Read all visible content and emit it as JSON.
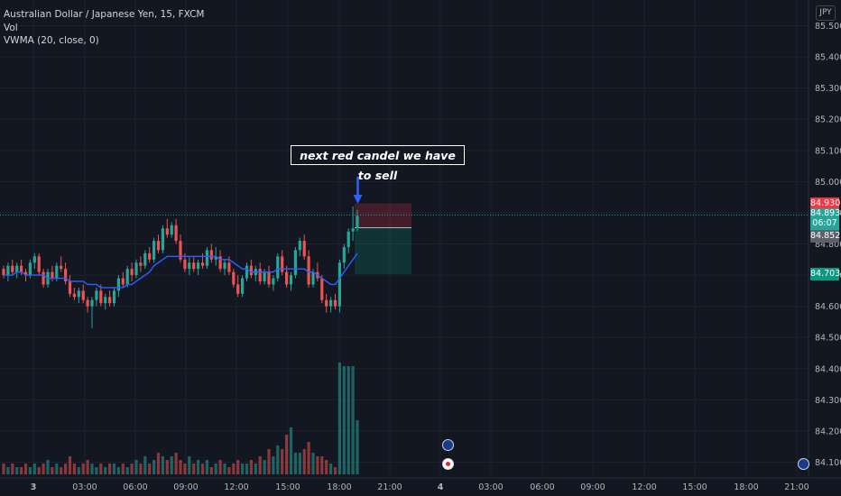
{
  "legend": {
    "symbol": "Australian Dollar / Japanese Yen, 15, FXCM",
    "vol": "Vol",
    "vwma": "VWMA (20, close, 0)"
  },
  "currency_button": "JPY",
  "annotation": {
    "text": "next red candel we have to sell"
  },
  "price_tags": {
    "stop": {
      "text": "84.930",
      "color": "#f23645"
    },
    "last": {
      "text": "84.893",
      "sub": "06:07",
      "color": "#26a69a"
    },
    "entry": {
      "text": "84.852",
      "color": "#5d606b"
    },
    "target": {
      "text": "84.703",
      "color": "#089981"
    }
  },
  "colors": {
    "up": "#26a69a",
    "down": "#ef5350",
    "vwma": "#2962ff",
    "volume_up": "#26a69a",
    "volume_down": "#ef5350",
    "grid": "#1e222d"
  },
  "chart_data": {
    "type": "candlestick",
    "title": "Australian Dollar / Japanese Yen, 15, FXCM",
    "interval_minutes": 15,
    "x_ticks": [
      "3",
      "03:00",
      "06:00",
      "09:00",
      "12:00",
      "15:00",
      "18:00",
      "21:00",
      "4",
      "03:00",
      "06:00",
      "09:00",
      "12:00",
      "15:00",
      "18:00",
      "21:00"
    ],
    "y_ticks": [
      "85.500",
      "85.400",
      "85.300",
      "85.200",
      "85.100",
      "85.000",
      "84.900",
      "84.800",
      "84.700",
      "84.600",
      "84.500",
      "84.400",
      "84.300",
      "84.200",
      "84.100"
    ],
    "ylim": [
      84.09,
      85.53
    ],
    "candles": [
      {
        "o": 84.72,
        "h": 84.73,
        "l": 84.69,
        "c": 84.7
      },
      {
        "o": 84.7,
        "h": 84.74,
        "l": 84.68,
        "c": 84.73
      },
      {
        "o": 84.73,
        "h": 84.75,
        "l": 84.7,
        "c": 84.71
      },
      {
        "o": 84.71,
        "h": 84.74,
        "l": 84.69,
        "c": 84.73
      },
      {
        "o": 84.73,
        "h": 84.75,
        "l": 84.7,
        "c": 84.71
      },
      {
        "o": 84.71,
        "h": 84.72,
        "l": 84.68,
        "c": 84.7
      },
      {
        "o": 84.7,
        "h": 84.75,
        "l": 84.69,
        "c": 84.74
      },
      {
        "o": 84.74,
        "h": 84.77,
        "l": 84.72,
        "c": 84.76
      },
      {
        "o": 84.76,
        "h": 84.77,
        "l": 84.7,
        "c": 84.71
      },
      {
        "o": 84.71,
        "h": 84.72,
        "l": 84.66,
        "c": 84.67
      },
      {
        "o": 84.67,
        "h": 84.72,
        "l": 84.66,
        "c": 84.71
      },
      {
        "o": 84.71,
        "h": 84.73,
        "l": 84.68,
        "c": 84.69
      },
      {
        "o": 84.69,
        "h": 84.74,
        "l": 84.68,
        "c": 84.73
      },
      {
        "o": 84.73,
        "h": 84.76,
        "l": 84.71,
        "c": 84.72
      },
      {
        "o": 84.72,
        "h": 84.74,
        "l": 84.67,
        "c": 84.68
      },
      {
        "o": 84.68,
        "h": 84.7,
        "l": 84.63,
        "c": 84.64
      },
      {
        "o": 84.64,
        "h": 84.66,
        "l": 84.62,
        "c": 84.63
      },
      {
        "o": 84.63,
        "h": 84.66,
        "l": 84.61,
        "c": 84.65
      },
      {
        "o": 84.65,
        "h": 84.67,
        "l": 84.61,
        "c": 84.62
      },
      {
        "o": 84.62,
        "h": 84.63,
        "l": 84.58,
        "c": 84.6
      },
      {
        "o": 84.6,
        "h": 84.63,
        "l": 84.53,
        "c": 84.62
      },
      {
        "o": 84.62,
        "h": 84.66,
        "l": 84.6,
        "c": 84.65
      },
      {
        "o": 84.65,
        "h": 84.67,
        "l": 84.6,
        "c": 84.61
      },
      {
        "o": 84.61,
        "h": 84.64,
        "l": 84.59,
        "c": 84.63
      },
      {
        "o": 84.63,
        "h": 84.65,
        "l": 84.6,
        "c": 84.61
      },
      {
        "o": 84.61,
        "h": 84.66,
        "l": 84.6,
        "c": 84.65
      },
      {
        "o": 84.65,
        "h": 84.7,
        "l": 84.63,
        "c": 84.69
      },
      {
        "o": 84.69,
        "h": 84.71,
        "l": 84.66,
        "c": 84.67
      },
      {
        "o": 84.67,
        "h": 84.73,
        "l": 84.66,
        "c": 84.72
      },
      {
        "o": 84.72,
        "h": 84.74,
        "l": 84.68,
        "c": 84.7
      },
      {
        "o": 84.7,
        "h": 84.75,
        "l": 84.69,
        "c": 84.74
      },
      {
        "o": 84.74,
        "h": 84.76,
        "l": 84.71,
        "c": 84.73
      },
      {
        "o": 84.73,
        "h": 84.78,
        "l": 84.72,
        "c": 84.77
      },
      {
        "o": 84.77,
        "h": 84.79,
        "l": 84.74,
        "c": 84.75
      },
      {
        "o": 84.75,
        "h": 84.82,
        "l": 84.74,
        "c": 84.81
      },
      {
        "o": 84.81,
        "h": 84.83,
        "l": 84.77,
        "c": 84.78
      },
      {
        "o": 84.78,
        "h": 84.86,
        "l": 84.77,
        "c": 84.85
      },
      {
        "o": 84.85,
        "h": 84.88,
        "l": 84.82,
        "c": 84.83
      },
      {
        "o": 84.83,
        "h": 84.87,
        "l": 84.82,
        "c": 84.86
      },
      {
        "o": 84.86,
        "h": 84.88,
        "l": 84.8,
        "c": 84.81
      },
      {
        "o": 84.81,
        "h": 84.83,
        "l": 84.74,
        "c": 84.75
      },
      {
        "o": 84.75,
        "h": 84.77,
        "l": 84.71,
        "c": 84.72
      },
      {
        "o": 84.72,
        "h": 84.76,
        "l": 84.7,
        "c": 84.74
      },
      {
        "o": 84.74,
        "h": 84.76,
        "l": 84.71,
        "c": 84.72
      },
      {
        "o": 84.72,
        "h": 84.75,
        "l": 84.7,
        "c": 84.74
      },
      {
        "o": 84.74,
        "h": 84.77,
        "l": 84.72,
        "c": 84.73
      },
      {
        "o": 84.73,
        "h": 84.79,
        "l": 84.72,
        "c": 84.78
      },
      {
        "o": 84.78,
        "h": 84.8,
        "l": 84.74,
        "c": 84.75
      },
      {
        "o": 84.75,
        "h": 84.79,
        "l": 84.73,
        "c": 84.76
      },
      {
        "o": 84.76,
        "h": 84.78,
        "l": 84.71,
        "c": 84.72
      },
      {
        "o": 84.72,
        "h": 84.75,
        "l": 84.7,
        "c": 84.74
      },
      {
        "o": 84.74,
        "h": 84.76,
        "l": 84.7,
        "c": 84.71
      },
      {
        "o": 84.71,
        "h": 84.72,
        "l": 84.66,
        "c": 84.67
      },
      {
        "o": 84.67,
        "h": 84.7,
        "l": 84.63,
        "c": 84.64
      },
      {
        "o": 84.64,
        "h": 84.7,
        "l": 84.63,
        "c": 84.69
      },
      {
        "o": 84.69,
        "h": 84.74,
        "l": 84.68,
        "c": 84.73
      },
      {
        "o": 84.73,
        "h": 84.75,
        "l": 84.69,
        "c": 84.7
      },
      {
        "o": 84.7,
        "h": 84.73,
        "l": 84.68,
        "c": 84.72
      },
      {
        "o": 84.72,
        "h": 84.74,
        "l": 84.67,
        "c": 84.68
      },
      {
        "o": 84.68,
        "h": 84.72,
        "l": 84.67,
        "c": 84.71
      },
      {
        "o": 84.71,
        "h": 84.73,
        "l": 84.66,
        "c": 84.67
      },
      {
        "o": 84.67,
        "h": 84.7,
        "l": 84.65,
        "c": 84.69
      },
      {
        "o": 84.69,
        "h": 84.77,
        "l": 84.68,
        "c": 84.76
      },
      {
        "o": 84.76,
        "h": 84.78,
        "l": 84.7,
        "c": 84.71
      },
      {
        "o": 84.71,
        "h": 84.73,
        "l": 84.66,
        "c": 84.67
      },
      {
        "o": 84.67,
        "h": 84.71,
        "l": 84.65,
        "c": 84.7
      },
      {
        "o": 84.7,
        "h": 84.79,
        "l": 84.69,
        "c": 84.78
      },
      {
        "o": 84.78,
        "h": 84.82,
        "l": 84.76,
        "c": 84.81
      },
      {
        "o": 84.81,
        "h": 84.83,
        "l": 84.75,
        "c": 84.76
      },
      {
        "o": 84.76,
        "h": 84.78,
        "l": 84.66,
        "c": 84.67
      },
      {
        "o": 84.67,
        "h": 84.72,
        "l": 84.66,
        "c": 84.71
      },
      {
        "o": 84.71,
        "h": 84.74,
        "l": 84.68,
        "c": 84.69
      },
      {
        "o": 84.69,
        "h": 84.7,
        "l": 84.61,
        "c": 84.62
      },
      {
        "o": 84.62,
        "h": 84.64,
        "l": 84.58,
        "c": 84.6
      },
      {
        "o": 84.6,
        "h": 84.63,
        "l": 84.58,
        "c": 84.62
      },
      {
        "o": 84.62,
        "h": 84.64,
        "l": 84.59,
        "c": 84.6
      },
      {
        "o": 84.6,
        "h": 84.75,
        "l": 84.58,
        "c": 84.74
      },
      {
        "o": 84.74,
        "h": 84.8,
        "l": 84.72,
        "c": 84.79
      },
      {
        "o": 84.79,
        "h": 84.85,
        "l": 84.77,
        "c": 84.84
      },
      {
        "o": 84.84,
        "h": 84.92,
        "l": 84.81,
        "c": 84.85
      },
      {
        "o": 84.85,
        "h": 84.91,
        "l": 84.84,
        "c": 84.89
      }
    ],
    "volume": [
      3,
      2,
      3,
      2,
      2,
      3,
      2,
      3,
      2,
      3,
      4,
      2,
      3,
      2,
      3,
      5,
      3,
      2,
      3,
      4,
      3,
      2,
      3,
      2,
      3,
      3,
      2,
      3,
      2,
      3,
      4,
      3,
      5,
      3,
      4,
      6,
      5,
      4,
      5,
      6,
      4,
      3,
      5,
      3,
      4,
      3,
      4,
      2,
      3,
      4,
      3,
      2,
      3,
      4,
      3,
      3,
      4,
      3,
      5,
      4,
      7,
      5,
      8,
      7,
      11,
      13,
      6,
      6,
      7,
      9,
      6,
      5,
      5,
      4,
      3,
      2,
      31,
      30,
      30,
      30,
      15
    ],
    "vwma": [
      84.7,
      84.7,
      84.7,
      84.71,
      84.71,
      84.7,
      84.7,
      84.7,
      84.7,
      84.7,
      84.69,
      84.69,
      84.69,
      84.69,
      84.69,
      84.68,
      84.68,
      84.68,
      84.68,
      84.67,
      84.67,
      84.67,
      84.66,
      84.66,
      84.66,
      84.66,
      84.66,
      84.66,
      84.67,
      84.67,
      84.68,
      84.69,
      84.7,
      84.71,
      84.73,
      84.74,
      84.75,
      84.76,
      84.76,
      84.76,
      84.76,
      84.76,
      84.76,
      84.76,
      84.76,
      84.76,
      84.76,
      84.76,
      84.76,
      84.75,
      84.75,
      84.75,
      84.74,
      84.73,
      84.72,
      84.72,
      84.71,
      84.71,
      84.71,
      84.71,
      84.71,
      84.71,
      84.72,
      84.72,
      84.72,
      84.72,
      84.72,
      84.72,
      84.72,
      84.71,
      84.71,
      84.7,
      84.69,
      84.68,
      84.67,
      84.67,
      84.69,
      84.71,
      84.73,
      84.75,
      84.77
    ],
    "position": {
      "side": "short",
      "stop": 84.93,
      "entry": 84.852,
      "target": 84.703
    },
    "last_price": 84.893
  }
}
